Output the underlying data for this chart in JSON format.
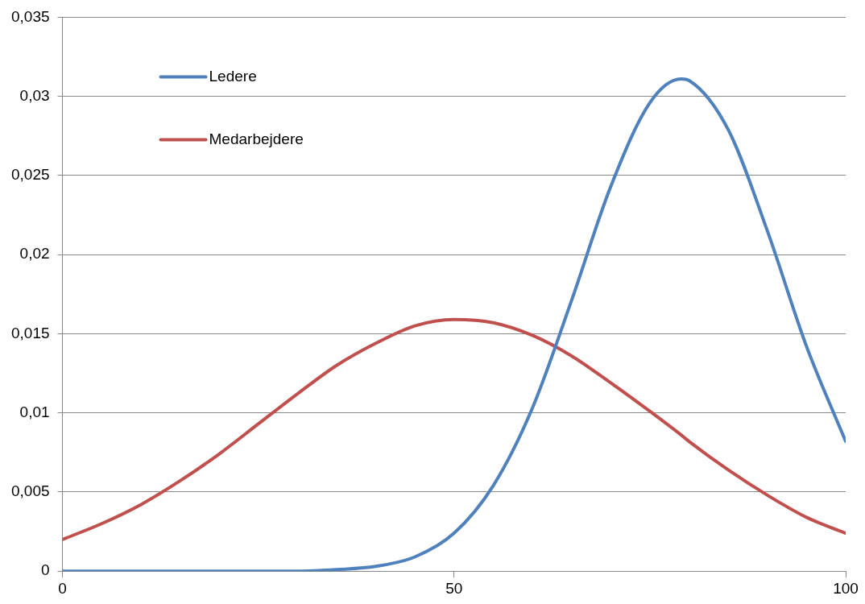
{
  "chart_data": {
    "type": "line",
    "x": [
      0,
      5,
      10,
      15,
      20,
      25,
      30,
      35,
      40,
      45,
      50,
      55,
      60,
      65,
      70,
      75,
      79,
      80,
      85,
      90,
      95,
      100
    ],
    "series": [
      {
        "name": "Ledere",
        "color": "#4f81bd",
        "values": [
          0,
          0,
          0,
          0,
          0,
          0,
          0,
          0.0001,
          0.0003,
          0.0009,
          0.0024,
          0.0054,
          0.0103,
          0.0171,
          0.0243,
          0.0296,
          0.0311,
          0.031,
          0.0279,
          0.0215,
          0.0142,
          0.0082
        ]
      },
      {
        "name": "Medarbejdere",
        "color": "#c0504d",
        "values": [
          0.002,
          0.003,
          0.0042,
          0.0057,
          0.0074,
          0.0093,
          0.0112,
          0.013,
          0.0144,
          0.0155,
          0.0159,
          0.0157,
          0.0149,
          0.0136,
          0.0119,
          0.0101,
          0.0086,
          0.0082,
          0.0064,
          0.0048,
          0.0034,
          0.0024
        ]
      }
    ],
    "xlim": [
      0,
      100
    ],
    "xticks": [
      0,
      50,
      100
    ],
    "ylim": [
      0,
      0.035
    ],
    "yticks": [
      0,
      {
        "value": 0.005,
        "label": "0,005"
      },
      {
        "value": 0.01,
        "label": "0,01"
      },
      {
        "value": 0.015,
        "label": "0,015"
      },
      {
        "value": 0.02,
        "label": "0,02"
      },
      {
        "value": 0.025,
        "label": "0,025"
      },
      {
        "value": 0.03,
        "label": "0,03"
      },
      {
        "value": 0.035,
        "label": "0,035"
      }
    ],
    "grid": "y",
    "legend": "top left",
    "marker": "none",
    "line_style": "solid"
  }
}
